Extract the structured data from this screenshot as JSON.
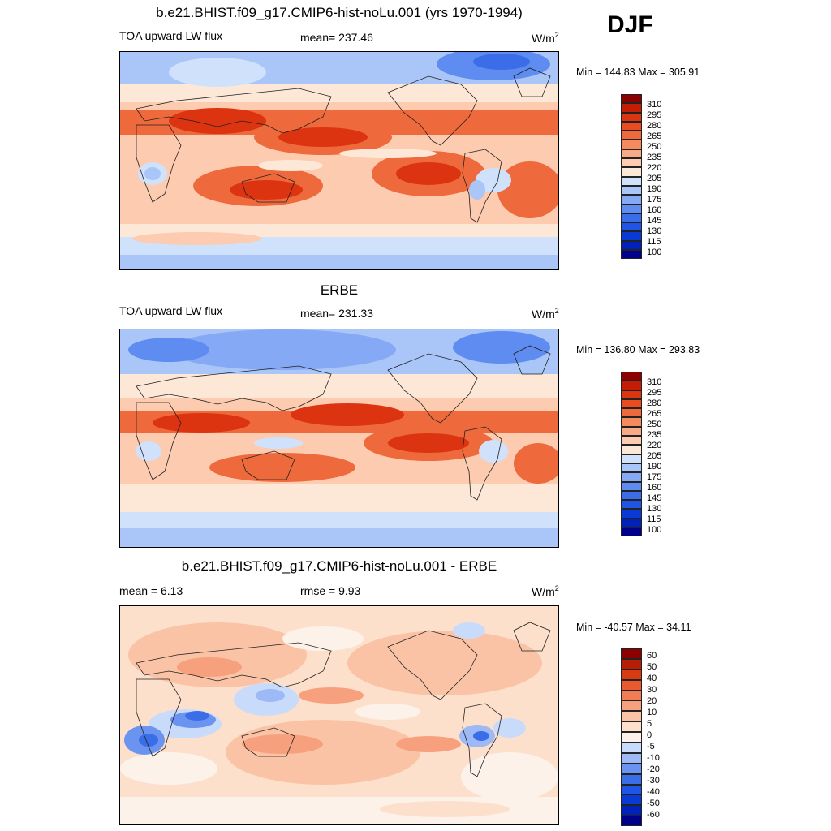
{
  "season": "DJF",
  "colors": {
    "scale_27": [
      "#00008b",
      "#0022bb",
      "#0a3ad6",
      "#1f55e6",
      "#3b6de8",
      "#5e8cf0",
      "#86a9f5",
      "#aac6f8",
      "#cfe1fb",
      "#fde8d8",
      "#fccbb0",
      "#f8a985",
      "#f48a5e",
      "#ee6a3c",
      "#e84c20",
      "#dc3410",
      "#c41d06",
      "#8b0000"
    ],
    "diff": [
      "#00008b",
      "#0022bb",
      "#0a3ad6",
      "#1f55e6",
      "#3b6de8",
      "#6b94f1",
      "#9db9f6",
      "#c8dbfb",
      "#fdf2ea",
      "#fde0cc",
      "#fbc3a6",
      "#f7a07d",
      "#f17d55",
      "#ea5a30",
      "#d83a12",
      "#b81d05",
      "#8b0000"
    ]
  },
  "panels": [
    {
      "id": "model",
      "title": "b.e21.BHIST.f09_g17.CMIP6-hist-noLu.001 (yrs 1970-1994)",
      "left_text": "TOA upward LW flux",
      "center_text": "mean= 237.46",
      "units": "W/m",
      "units_sup": "2",
      "minmax": "Min = 144.83 Max = 305.91",
      "colorbar_labels": [
        "310",
        "295",
        "280",
        "265",
        "250",
        "235",
        "220",
        "205",
        "190",
        "175",
        "160",
        "145",
        "130",
        "115",
        "100"
      ]
    },
    {
      "id": "obs",
      "title": "ERBE",
      "left_text": "TOA upward LW flux",
      "center_text": "mean= 231.33",
      "units": "W/m",
      "units_sup": "2",
      "minmax": "Min = 136.80 Max = 293.83",
      "colorbar_labels": [
        "310",
        "295",
        "280",
        "265",
        "250",
        "235",
        "220",
        "205",
        "190",
        "175",
        "160",
        "145",
        "130",
        "115",
        "100"
      ]
    },
    {
      "id": "diff",
      "title": "b.e21.BHIST.f09_g17.CMIP6-hist-noLu.001 - ERBE",
      "left_text": "mean =   6.13",
      "center_text": "rmse =   9.93",
      "units": "W/m",
      "units_sup": "2",
      "minmax": "Min = -40.57 Max =  34.11",
      "colorbar_labels": [
        "60",
        "50",
        "40",
        "30",
        "20",
        "10",
        "5",
        "0",
        "-5",
        "-10",
        "-20",
        "-30",
        "-40",
        "-50",
        "-60"
      ]
    }
  ]
}
